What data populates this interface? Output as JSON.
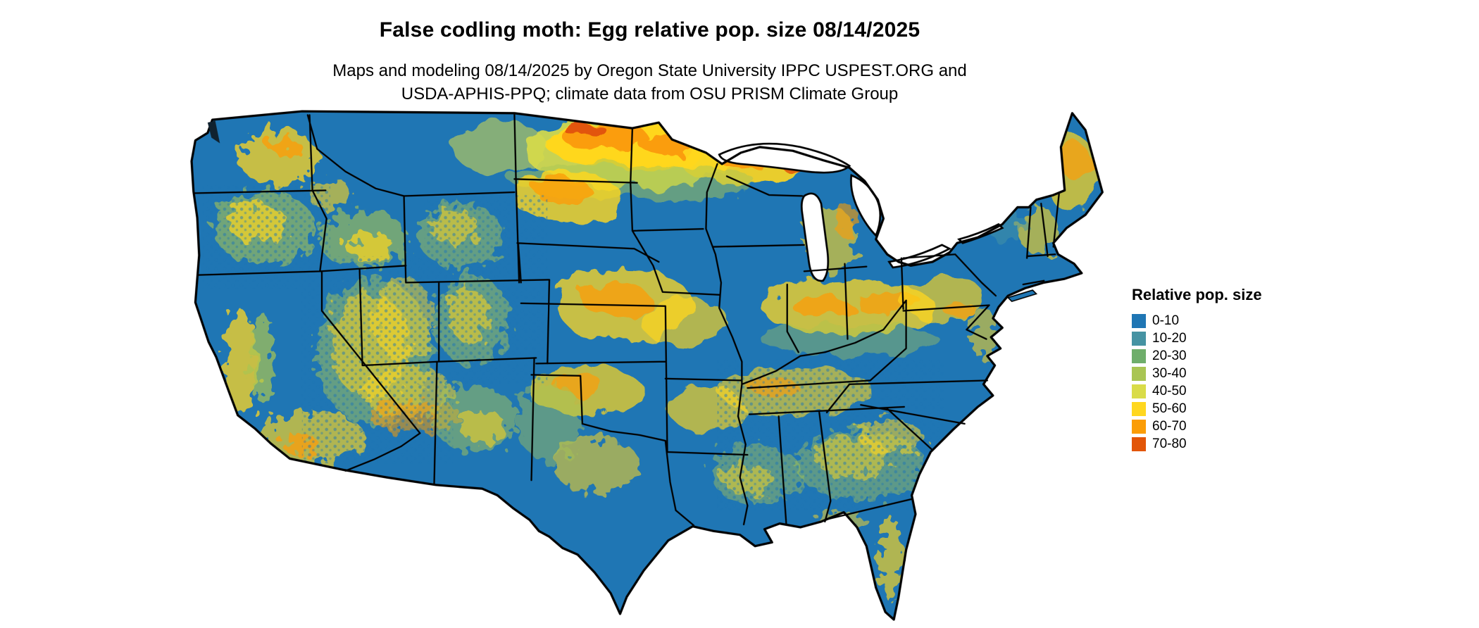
{
  "header": {
    "title": "False codling moth: Egg relative pop. size 08/14/2025",
    "subtitle_line1": "Maps and modeling 08/14/2025 by Oregon State University IPPC USPEST.ORG and",
    "subtitle_line2": "USDA-APHIS-PPQ; climate data from OSU PRISM Climate Group"
  },
  "map": {
    "description": "Continental United States raster map of false codling moth egg relative population size; mostly low (blue) with yellow-orange hotspots in the northern plains, mountain west, central plains, Ohio valley and Maine",
    "base_color": "#1f76b4",
    "border_color": "#000000",
    "water_color": "#ffffff"
  },
  "legend": {
    "title": "Relative pop. size",
    "items": [
      {
        "label": "0-10",
        "color": "#1f76b4"
      },
      {
        "label": "10-20",
        "color": "#4693a3"
      },
      {
        "label": "20-30",
        "color": "#6fae6b"
      },
      {
        "label": "30-40",
        "color": "#a9c553"
      },
      {
        "label": "40-50",
        "color": "#d9dc49"
      },
      {
        "label": "50-60",
        "color": "#ffd71f"
      },
      {
        "label": "60-70",
        "color": "#fb9d07"
      },
      {
        "label": "70-80",
        "color": "#e25508"
      }
    ]
  }
}
